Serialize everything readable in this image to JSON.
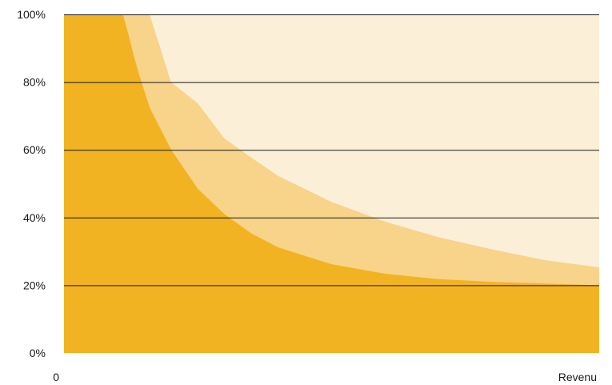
{
  "chart_data": {
    "type": "area",
    "title": "",
    "xlabel": "Revenu",
    "ylabel": "",
    "ylim": [
      0,
      100
    ],
    "y_ticks": [
      "0%",
      "20%",
      "40%",
      "60%",
      "80%",
      "100%"
    ],
    "y_tick_values": [
      0,
      20,
      40,
      60,
      80,
      100
    ],
    "x_tick_labels": [
      "0",
      "Revenu"
    ],
    "grid": true,
    "legend": "none",
    "x": [
      0,
      2,
      5,
      8,
      11,
      12,
      13,
      14,
      16,
      20,
      25,
      30,
      35,
      40,
      50,
      60,
      70,
      80,
      90,
      100
    ],
    "series": [
      {
        "color": "#F2B322",
        "values": [
          100,
          100,
          100,
          100,
          100,
          94.4,
          88,
          82.4,
          72.5,
          60.1,
          48.5,
          41,
          35.3,
          31.2,
          26.2,
          23.4,
          21.8,
          21,
          20.5,
          20
        ]
      },
      {
        "color": "#F8D38A",
        "values": [
          100,
          100,
          100,
          100,
          100,
          100,
          100,
          100,
          100,
          80,
          73.7,
          63.3,
          57.7,
          52.3,
          44.6,
          38.8,
          34.2,
          30.6,
          27.4,
          25.3
        ]
      },
      {
        "color": "#FCEFD8",
        "values": [
          100,
          100,
          100,
          100,
          100,
          100,
          100,
          100,
          100,
          100,
          100,
          100,
          100,
          100,
          100,
          100,
          100,
          100,
          100,
          100
        ]
      }
    ]
  }
}
